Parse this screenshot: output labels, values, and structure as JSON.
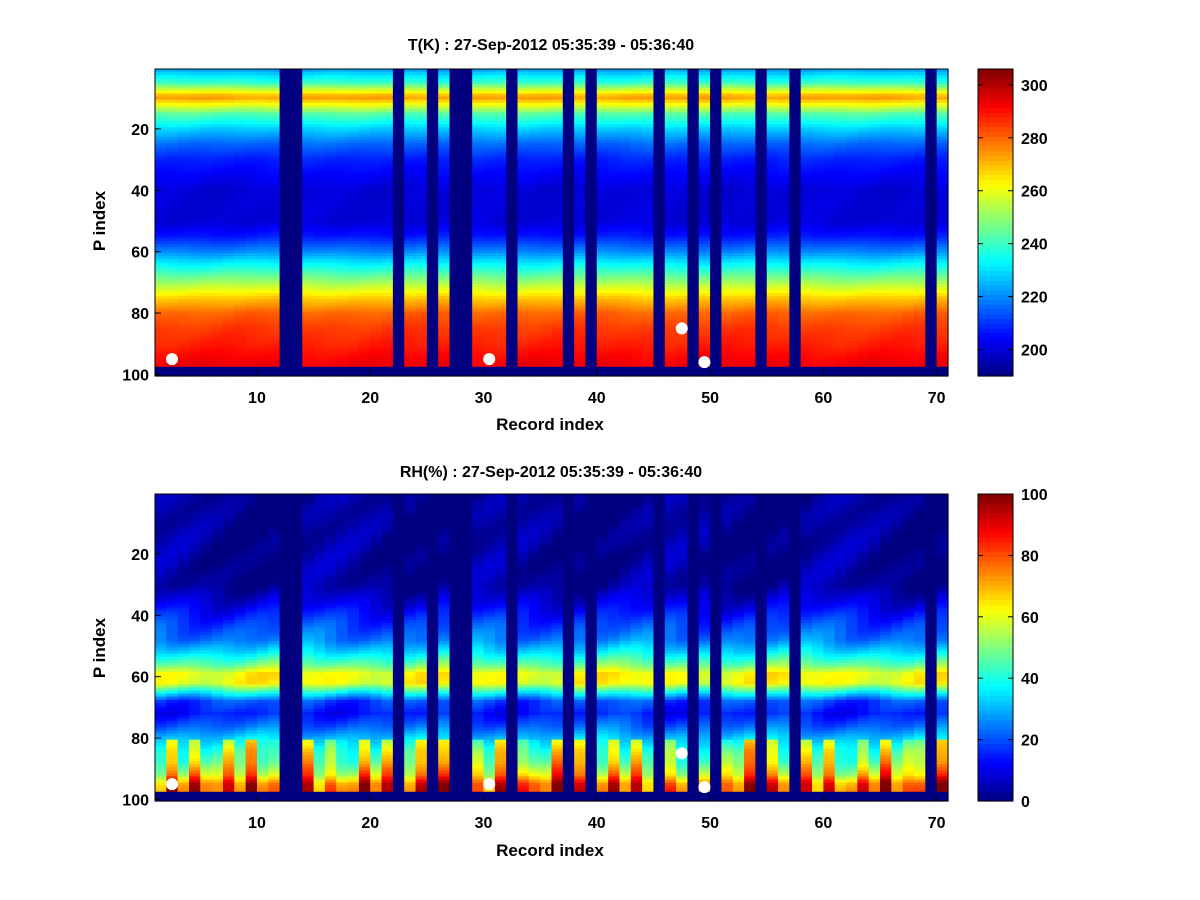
{
  "chart_data": [
    {
      "type": "heatmap",
      "title": "T(K) : 27-Sep-2012 05:35:39 - 05:36:40",
      "xlabel": "Record index",
      "ylabel": "P index",
      "xlim": [
        1,
        71
      ],
      "ylim": [
        100,
        1
      ],
      "y_reversed": true,
      "xticks": [
        10,
        20,
        30,
        40,
        50,
        60,
        70
      ],
      "yticks": [
        20,
        40,
        60,
        80,
        100
      ],
      "colormap": "jet",
      "colorbar": {
        "min": 190,
        "max": 306,
        "ticks": [
          200,
          220,
          240,
          260,
          280,
          300
        ]
      },
      "missing_records": [
        12,
        13,
        22,
        25,
        27,
        28,
        32,
        37,
        39,
        45,
        48,
        50,
        54,
        57,
        69
      ],
      "profile_rows": [
        1,
        5,
        9,
        10,
        12,
        15,
        20,
        25,
        30,
        40,
        50,
        55,
        60,
        65,
        70,
        75,
        80,
        85,
        90,
        95,
        97
      ],
      "profile_values": [
        224,
        240,
        270,
        273,
        262,
        244,
        228,
        216,
        208,
        200,
        200,
        207,
        220,
        236,
        252,
        268,
        280,
        285,
        288,
        292,
        293
      ],
      "surface_markers": [
        {
          "record": 2,
          "p_index": 95
        },
        {
          "record": 30,
          "p_index": 95
        },
        {
          "record": 47,
          "p_index": 85
        },
        {
          "record": 49,
          "p_index": 96
        }
      ]
    },
    {
      "type": "heatmap",
      "title": "RH(%) : 27-Sep-2012 05:35:39 - 05:36:40",
      "xlabel": "Record index",
      "ylabel": "P index",
      "xlim": [
        1,
        71
      ],
      "ylim": [
        100,
        1
      ],
      "y_reversed": true,
      "xticks": [
        10,
        20,
        30,
        40,
        50,
        60,
        70
      ],
      "yticks": [
        20,
        40,
        60,
        80,
        100
      ],
      "colormap": "jet",
      "colorbar": {
        "min": 0,
        "max": 100,
        "ticks": [
          0,
          20,
          40,
          60,
          80,
          100
        ]
      },
      "missing_records": [
        12,
        13,
        22,
        25,
        27,
        28,
        32,
        37,
        39,
        45,
        48,
        50,
        54,
        57,
        69
      ],
      "profile_rows": [
        1,
        30,
        36,
        42,
        48,
        52,
        56,
        59,
        62,
        65,
        68,
        72,
        76,
        80,
        84,
        88,
        92,
        95,
        97
      ],
      "profile_values": [
        2,
        3,
        10,
        18,
        25,
        35,
        48,
        62,
        62,
        40,
        20,
        15,
        22,
        32,
        40,
        45,
        55,
        70,
        72
      ],
      "surface_markers": [
        {
          "record": 2,
          "p_index": 95
        },
        {
          "record": 30,
          "p_index": 95
        },
        {
          "record": 47,
          "p_index": 85
        },
        {
          "record": 49,
          "p_index": 96
        }
      ]
    }
  ]
}
